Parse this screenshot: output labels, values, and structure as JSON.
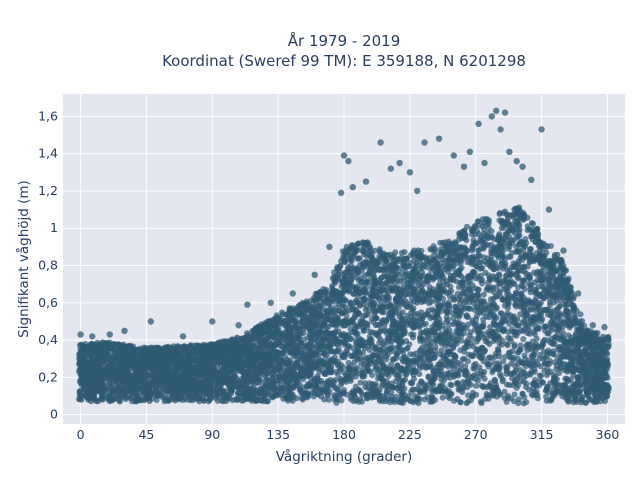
{
  "chart_data": {
    "type": "scatter",
    "title": "År 1979 - 2019",
    "subtitle": "Koordinat (Sweref 99 TM): E 359188, N 6201298",
    "xlabel": "Vågriktning (grader)",
    "ylabel": "Signifikant våghöjd (m)",
    "xlim": [
      -12,
      372
    ],
    "ylim": [
      -0.05,
      1.72
    ],
    "x_ticks": [
      0,
      45,
      90,
      135,
      180,
      225,
      270,
      315,
      360
    ],
    "x_tick_labels": [
      "0",
      "45",
      "90",
      "135",
      "180",
      "225",
      "270",
      "315",
      "360"
    ],
    "y_ticks": [
      0,
      0.2,
      0.4,
      0.6,
      0.8,
      1.0,
      1.2,
      1.4,
      1.6
    ],
    "y_tick_labels": [
      "0",
      "0,2",
      "0,4",
      "0,6",
      "0,8",
      "1",
      "1,2",
      "1,4",
      "1,6"
    ],
    "grid": true,
    "colors": {
      "marker": "#2f5a73",
      "plot_bg": "#e5e7f0",
      "grid": "#ffffff",
      "text": "#2a3f5f"
    },
    "density_profile": {
      "direction": [
        0,
        20,
        45,
        70,
        90,
        110,
        135,
        155,
        170,
        180,
        195,
        210,
        225,
        240,
        255,
        270,
        285,
        300,
        315,
        330,
        345,
        360
      ],
      "lower_height": [
        0.07,
        0.07,
        0.07,
        0.07,
        0.07,
        0.07,
        0.07,
        0.07,
        0.06,
        0.06,
        0.06,
        0.06,
        0.06,
        0.06,
        0.06,
        0.06,
        0.06,
        0.06,
        0.06,
        0.06,
        0.06,
        0.07
      ],
      "upper_height": [
        0.38,
        0.39,
        0.36,
        0.37,
        0.38,
        0.42,
        0.54,
        0.62,
        0.7,
        0.9,
        0.93,
        0.87,
        0.88,
        0.9,
        0.96,
        1.04,
        1.08,
        1.12,
        0.97,
        0.82,
        0.46,
        0.42
      ]
    },
    "outliers": [
      {
        "x": 0,
        "y": 0.43
      },
      {
        "x": 8,
        "y": 0.42
      },
      {
        "x": 20,
        "y": 0.43
      },
      {
        "x": 30,
        "y": 0.45
      },
      {
        "x": 48,
        "y": 0.5
      },
      {
        "x": 70,
        "y": 0.42
      },
      {
        "x": 90,
        "y": 0.5
      },
      {
        "x": 108,
        "y": 0.48
      },
      {
        "x": 114,
        "y": 0.59
      },
      {
        "x": 130,
        "y": 0.6
      },
      {
        "x": 145,
        "y": 0.65
      },
      {
        "x": 160,
        "y": 0.75
      },
      {
        "x": 170,
        "y": 0.9
      },
      {
        "x": 178,
        "y": 1.19
      },
      {
        "x": 180,
        "y": 1.39
      },
      {
        "x": 183,
        "y": 1.36
      },
      {
        "x": 186,
        "y": 1.22
      },
      {
        "x": 195,
        "y": 1.25
      },
      {
        "x": 205,
        "y": 1.46
      },
      {
        "x": 212,
        "y": 1.32
      },
      {
        "x": 218,
        "y": 1.35
      },
      {
        "x": 225,
        "y": 1.3
      },
      {
        "x": 230,
        "y": 1.2
      },
      {
        "x": 235,
        "y": 1.46
      },
      {
        "x": 245,
        "y": 1.48
      },
      {
        "x": 255,
        "y": 1.39
      },
      {
        "x": 262,
        "y": 1.33
      },
      {
        "x": 266,
        "y": 1.41
      },
      {
        "x": 272,
        "y": 1.56
      },
      {
        "x": 276,
        "y": 1.35
      },
      {
        "x": 281,
        "y": 1.6
      },
      {
        "x": 284,
        "y": 1.63
      },
      {
        "x": 287,
        "y": 1.53
      },
      {
        "x": 290,
        "y": 1.62
      },
      {
        "x": 293,
        "y": 1.41
      },
      {
        "x": 298,
        "y": 1.36
      },
      {
        "x": 302,
        "y": 1.33
      },
      {
        "x": 308,
        "y": 1.26
      },
      {
        "x": 315,
        "y": 1.53
      },
      {
        "x": 320,
        "y": 1.1
      },
      {
        "x": 330,
        "y": 0.88
      },
      {
        "x": 340,
        "y": 0.65
      },
      {
        "x": 350,
        "y": 0.48
      },
      {
        "x": 358,
        "y": 0.47
      }
    ]
  }
}
